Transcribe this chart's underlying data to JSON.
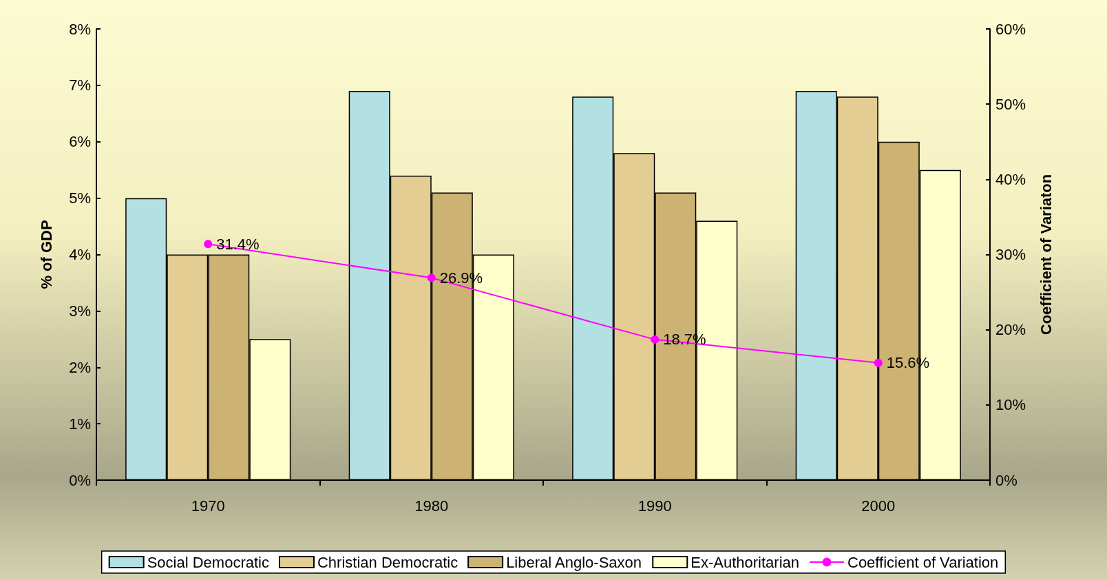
{
  "chart_data": {
    "type": "bar",
    "ylabel": "% of GDP",
    "y2label": "Coefficient of Variaton",
    "categories": [
      "1970",
      "1980",
      "1990",
      "2000"
    ],
    "series": [
      {
        "name": "Social Democratic",
        "color": "#b3e0e3",
        "values": [
          5.0,
          6.9,
          6.8,
          6.9
        ]
      },
      {
        "name": "Christian Democratic",
        "color": "#e3cd93",
        "values": [
          4.0,
          5.4,
          5.8,
          6.8
        ]
      },
      {
        "name": "Liberal Anglo-Saxon",
        "color": "#ccb273",
        "values": [
          4.0,
          5.1,
          5.1,
          6.0
        ]
      },
      {
        "name": "Ex-Authoritarian",
        "color": "#ffffcc",
        "values": [
          2.5,
          4.0,
          4.6,
          5.5
        ]
      },
      {
        "name": "Coefficient of Variation",
        "type": "line",
        "axis": "y2",
        "color": "#ff00ff",
        "marker": "circle",
        "values": [
          31.4,
          26.9,
          18.7,
          15.6
        ],
        "value_labels": [
          "31.4%",
          "26.9%",
          "18.7%",
          "15.6%"
        ]
      }
    ],
    "ylim": [
      0,
      8
    ],
    "yticks": [
      {
        "value": 0,
        "label": "0%"
      },
      {
        "value": 1,
        "label": "1%"
      },
      {
        "value": 2,
        "label": "2%"
      },
      {
        "value": 3,
        "label": "3%"
      },
      {
        "value": 4,
        "label": "4%"
      },
      {
        "value": 5,
        "label": "5%"
      },
      {
        "value": 6,
        "label": "6%"
      },
      {
        "value": 7,
        "label": "7%"
      },
      {
        "value": 8,
        "label": "8%"
      }
    ],
    "y2lim": [
      0,
      60
    ],
    "y2ticks": [
      {
        "value": 0,
        "label": "0%"
      },
      {
        "value": 10,
        "label": "10%"
      },
      {
        "value": 20,
        "label": "20%"
      },
      {
        "value": 30,
        "label": "30%"
      },
      {
        "value": 40,
        "label": "40%"
      },
      {
        "value": 50,
        "label": "50%"
      },
      {
        "value": 60,
        "label": "60%"
      }
    ],
    "grid": false,
    "legend": "bottom"
  }
}
